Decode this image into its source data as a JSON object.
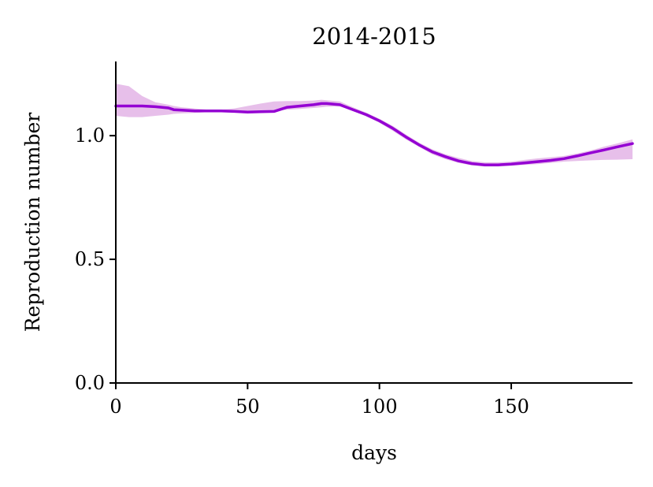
{
  "chart_data": {
    "type": "line",
    "title": "2014-2015",
    "xlabel": "days",
    "ylabel": "Reproduction number",
    "xlim": [
      0,
      196
    ],
    "ylim": [
      0,
      1.3
    ],
    "xticks": [
      0,
      50,
      100,
      150
    ],
    "xtick_labels": [
      "0",
      "50",
      "100",
      "150"
    ],
    "yticks": [
      0.0,
      0.5,
      1.0
    ],
    "ytick_labels": [
      "0.0",
      "0.5",
      "1.0"
    ],
    "grid": false,
    "legend": "none",
    "series": [
      {
        "color": "#9400d3",
        "band_color": "#e7bfea",
        "x": [
          0,
          5,
          10,
          15,
          20,
          22,
          25,
          30,
          35,
          40,
          45,
          50,
          55,
          60,
          65,
          70,
          75,
          78,
          80,
          85,
          90,
          95,
          100,
          105,
          110,
          115,
          120,
          125,
          130,
          135,
          140,
          145,
          150,
          155,
          160,
          165,
          170,
          175,
          180,
          185,
          190,
          196
        ],
        "y": [
          1.12,
          1.12,
          1.12,
          1.117,
          1.112,
          1.105,
          1.103,
          1.1,
          1.1,
          1.1,
          1.098,
          1.095,
          1.097,
          1.098,
          1.115,
          1.12,
          1.125,
          1.13,
          1.13,
          1.125,
          1.105,
          1.085,
          1.06,
          1.03,
          0.995,
          0.963,
          0.935,
          0.915,
          0.898,
          0.887,
          0.882,
          0.882,
          0.885,
          0.89,
          0.895,
          0.9,
          0.907,
          0.918,
          0.93,
          0.942,
          0.954,
          0.968
        ],
        "lower": [
          1.08,
          1.075,
          1.075,
          1.08,
          1.085,
          1.088,
          1.09,
          1.092,
          1.095,
          1.095,
          1.095,
          1.098,
          1.1,
          1.1,
          1.105,
          1.108,
          1.112,
          1.115,
          1.117,
          1.118,
          1.1,
          1.078,
          1.052,
          1.02,
          0.985,
          0.955,
          0.925,
          0.905,
          0.89,
          0.88,
          0.875,
          0.875,
          0.878,
          0.882,
          0.885,
          0.89,
          0.895,
          0.898,
          0.9,
          0.902,
          0.903,
          0.905
        ],
        "upper": [
          1.21,
          1.2,
          1.16,
          1.135,
          1.125,
          1.12,
          1.115,
          1.11,
          1.105,
          1.105,
          1.11,
          1.12,
          1.13,
          1.138,
          1.14,
          1.14,
          1.142,
          1.145,
          1.143,
          1.138,
          1.115,
          1.093,
          1.068,
          1.04,
          1.005,
          0.972,
          0.945,
          0.925,
          0.91,
          0.898,
          0.892,
          0.892,
          0.895,
          0.902,
          0.908,
          0.913,
          0.918,
          0.928,
          0.94,
          0.955,
          0.968,
          0.985
        ]
      }
    ]
  }
}
